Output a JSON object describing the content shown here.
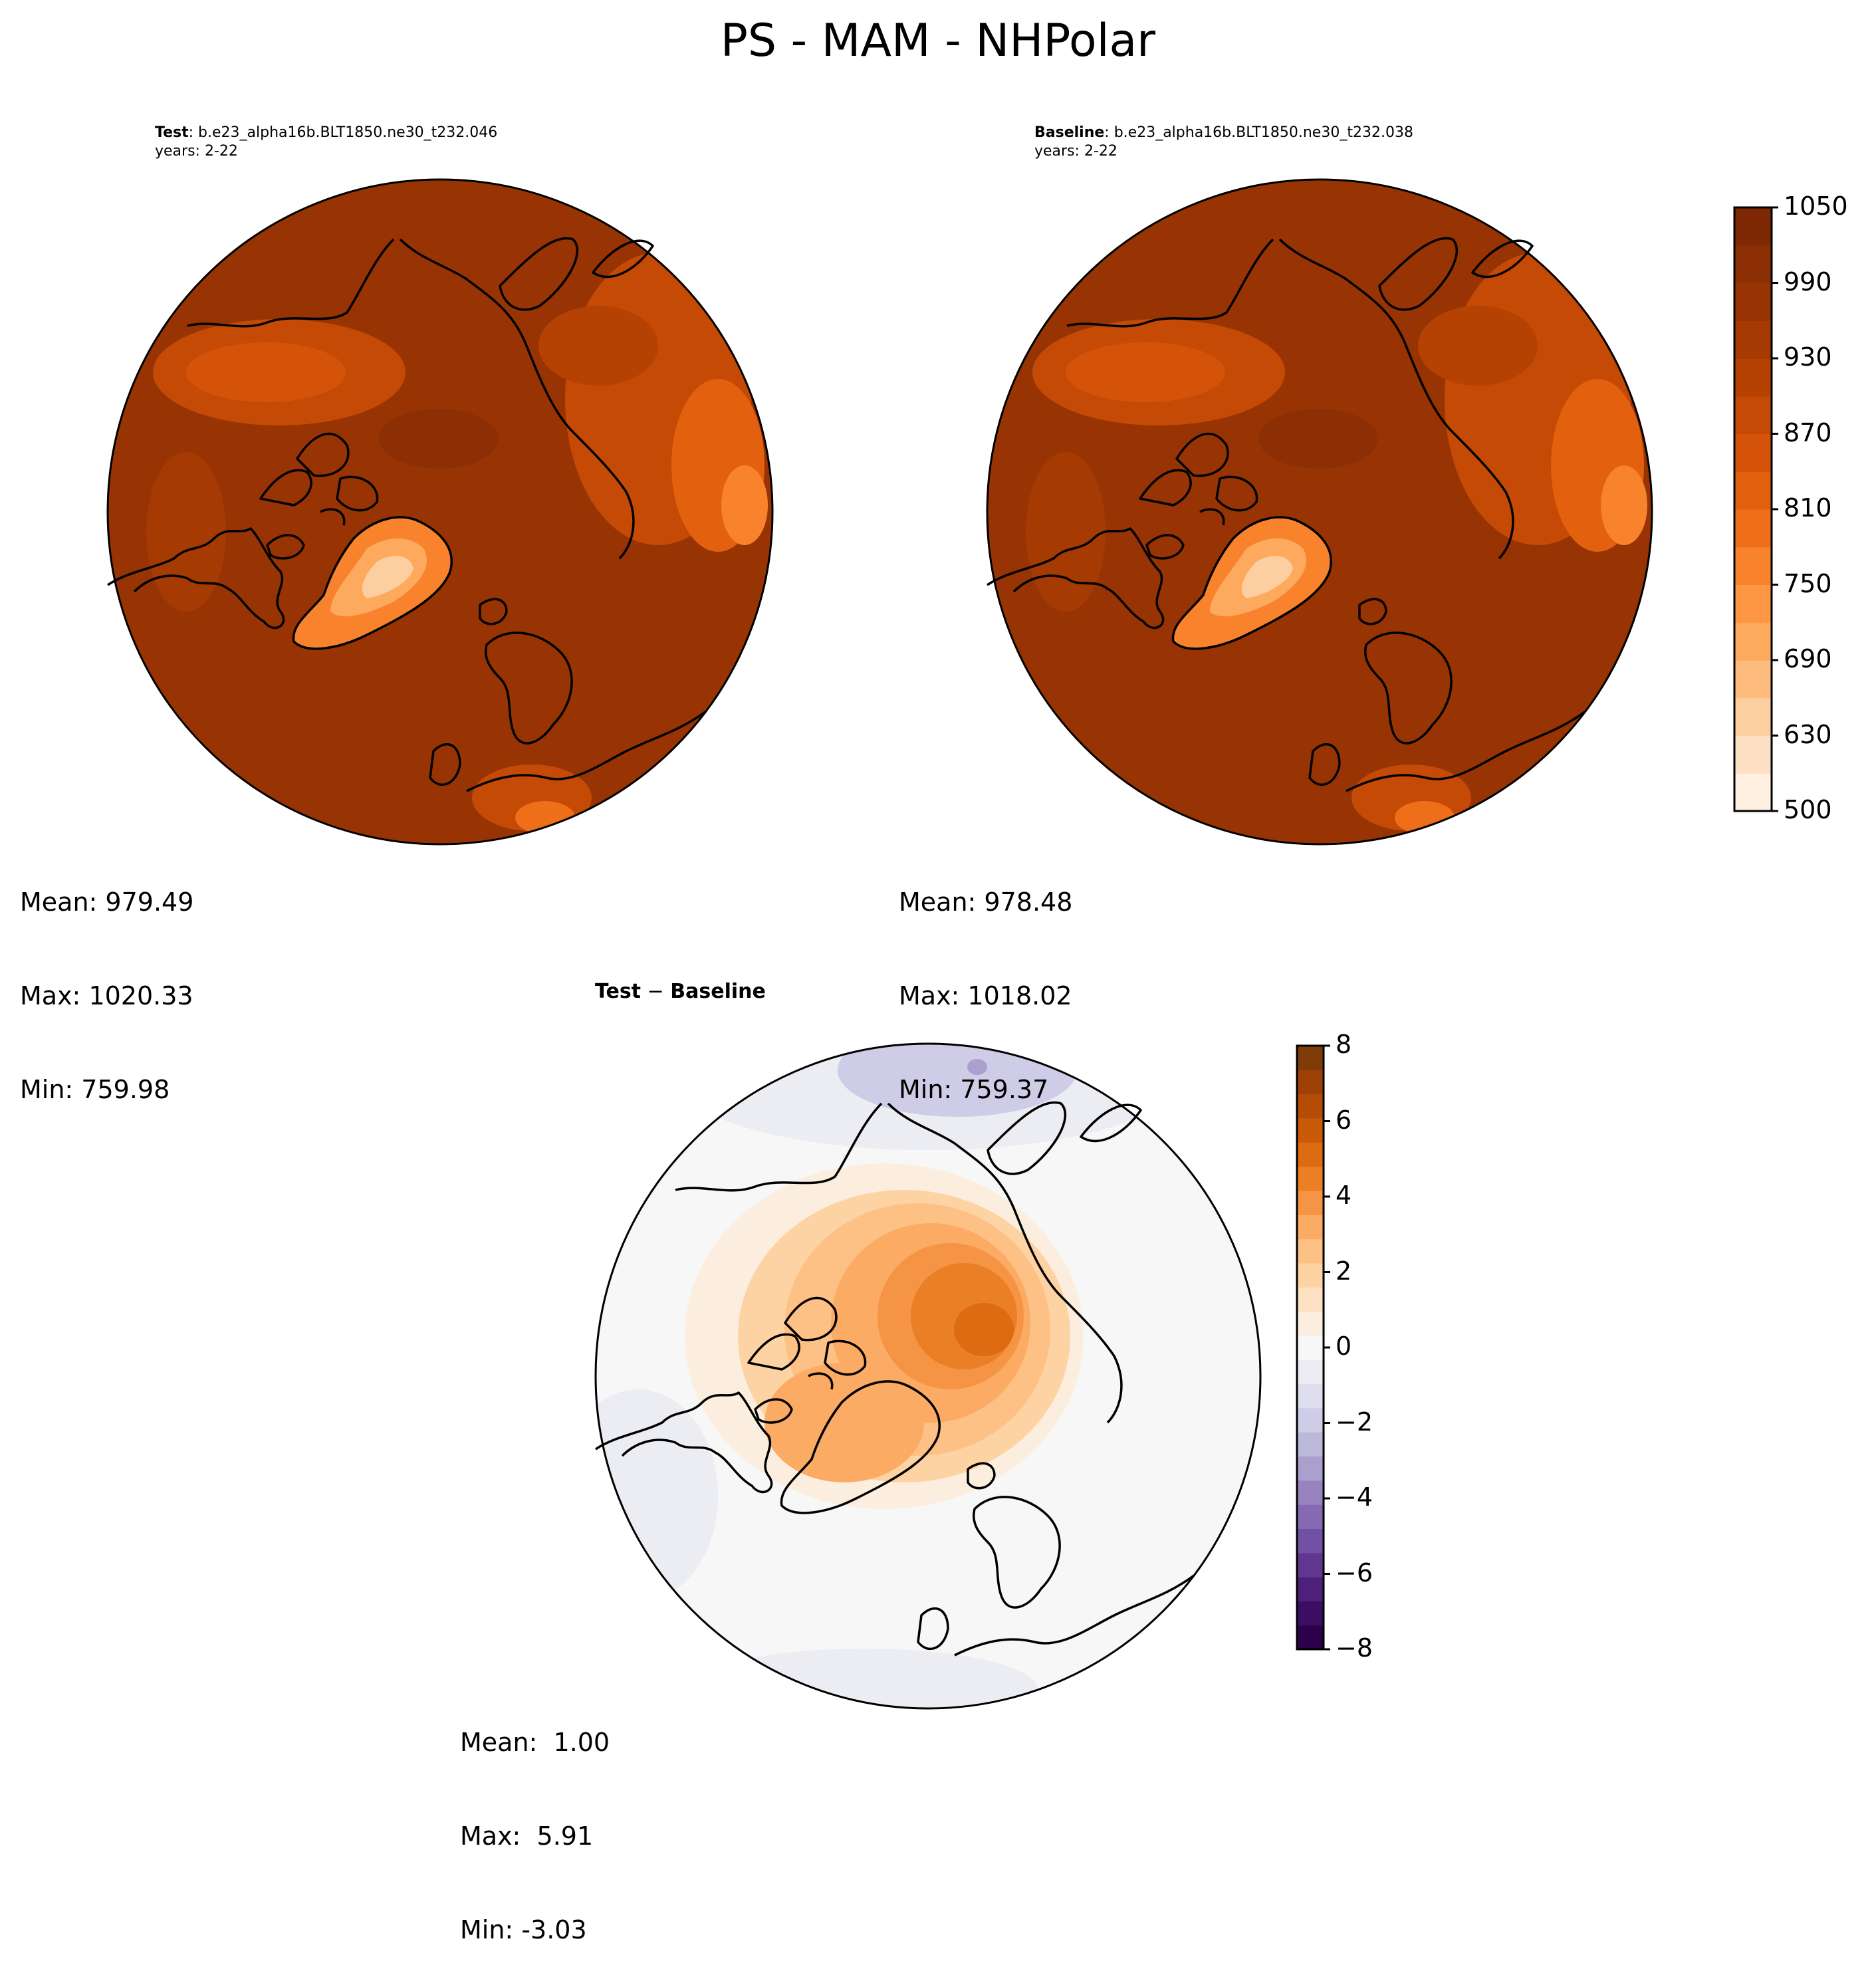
{
  "figure": {
    "title": "PS - MAM - NHPolar"
  },
  "panels": {
    "test": {
      "label": "Test",
      "case": ": b.e23_alpha16b.BLT1850.ne30_t232.046",
      "years": "years: 2-22",
      "stats": {
        "mean": "Mean: 979.49",
        "max": "Max: 1020.33",
        "min": "Min: 759.98"
      }
    },
    "baseline": {
      "label": "Baseline",
      "case": ": b.e23_alpha16b.BLT1850.ne30_t232.038",
      "years": "years: 2-22",
      "stats": {
        "mean": "Mean: 978.48",
        "max": "Max: 1018.02",
        "min": "Min: 759.37"
      }
    },
    "diff": {
      "label_test": "Test",
      "label_minus": " − ",
      "label_base": "Baseline",
      "stats": {
        "mean": "Mean:  1.00",
        "max": "Max:  5.91",
        "min": "Min: -3.03"
      }
    }
  },
  "colorbars": {
    "main": {
      "ticks": [
        "1050",
        "990",
        "930",
        "870",
        "810",
        "750",
        "690",
        "630",
        "500"
      ],
      "colors": [
        "#fff0e2",
        "#fde0c4",
        "#fdcfa0",
        "#fdbc7e",
        "#fdaa5f",
        "#fd9744",
        "#f8832c",
        "#ef6e19",
        "#e3600f",
        "#d45309",
        "#c44a05",
        "#b54103",
        "#a53a03",
        "#983403",
        "#8c2f04",
        "#7f2804"
      ]
    },
    "diff": {
      "ticks": [
        "8",
        "6",
        "4",
        "2",
        "0",
        "−2",
        "−4",
        "−6",
        "−8"
      ],
      "colors": [
        "#2d004b",
        "#3d0c63",
        "#4f1f7c",
        "#603690",
        "#7250a3",
        "#8569b2",
        "#9883bf",
        "#ab9fcd",
        "#bcb8da",
        "#cecce6",
        "#dedeee",
        "#ececf3",
        "#f7f7f7",
        "#fceede",
        "#fde1c2",
        "#fdd3a4",
        "#fdc085",
        "#fbab64",
        "#f59445",
        "#ea7f26",
        "#dd6b11",
        "#c95a08",
        "#b44c06",
        "#9e4107",
        "#7f3b08"
      ]
    }
  }
}
